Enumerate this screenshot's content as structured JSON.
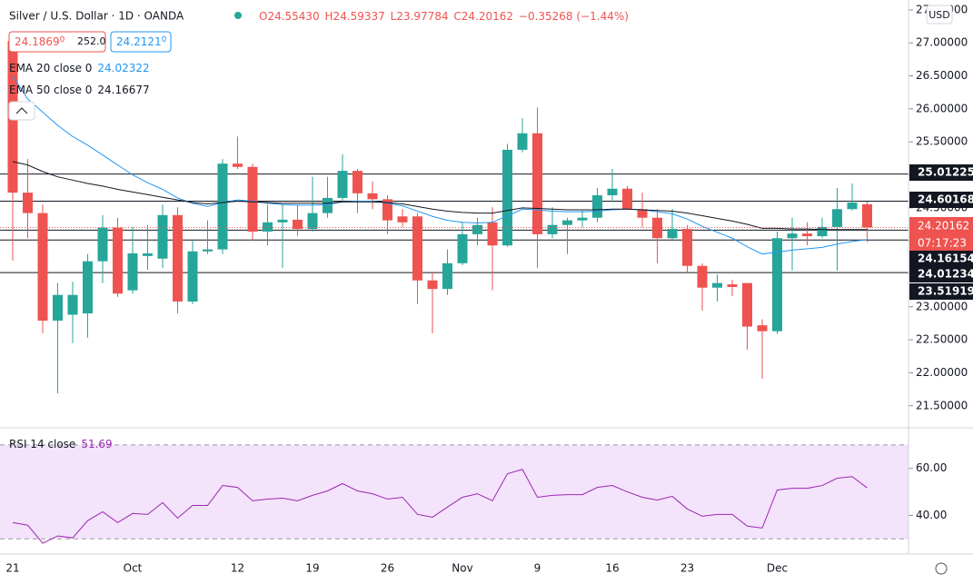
{
  "header": {
    "symbol": "Silver / U.S. Dollar · 1D · OANDA",
    "open": "O24.55430",
    "high": "H24.59337",
    "low": "L23.97784",
    "close": "C24.20162",
    "change": "−0.35268 (−1.44%)",
    "bid": "24.1869",
    "bid_sup": "0",
    "spread": "252.0",
    "ask": "24.2121",
    "ask_sup": "0",
    "currency": "USD"
  },
  "chart_data": [
    {
      "type": "candlestick",
      "title": "Silver / U.S. Dollar · 1D · OANDA",
      "categories": [
        "21",
        null,
        null,
        null,
        null,
        null,
        null,
        null,
        "Oct",
        null,
        null,
        null,
        null,
        null,
        null,
        "12",
        null,
        null,
        null,
        null,
        "19",
        null,
        null,
        null,
        null,
        "26",
        null,
        null,
        null,
        null,
        "Nov",
        null,
        null,
        null,
        null,
        "9",
        null,
        null,
        null,
        null,
        "16",
        null,
        null,
        null,
        null,
        "23",
        null,
        null,
        null,
        null,
        null,
        "Dec",
        null,
        null,
        null,
        null,
        null,
        null
      ],
      "open": [
        27.03,
        24.73,
        24.42,
        22.79,
        22.88,
        22.9,
        23.69,
        24.2,
        23.25,
        23.77,
        23.73,
        24.39,
        23.08,
        23.84,
        23.87,
        25.17,
        25.12,
        24.14,
        24.28,
        24.32,
        24.18,
        24.42,
        24.65,
        25.06,
        24.72,
        24.63,
        24.37,
        24.37,
        23.4,
        23.27,
        23.66,
        24.1,
        24.28,
        23.93,
        25.38,
        25.63,
        24.1,
        24.24,
        24.31,
        24.35,
        24.69,
        24.79,
        24.48,
        24.35,
        24.04,
        24.18,
        23.62,
        23.29,
        23.34,
        23.36,
        22.72,
        22.63,
        24.04,
        24.11,
        24.07,
        24.21,
        24.48,
        24.5543
      ],
      "high": [
        27.1,
        25.24,
        24.55,
        23.36,
        23.38,
        23.8,
        24.39,
        24.35,
        24.21,
        24.24,
        24.55,
        24.51,
        24.0,
        24.31,
        25.24,
        25.58,
        25.17,
        24.55,
        24.55,
        24.55,
        24.97,
        24.97,
        25.31,
        25.09,
        24.9,
        24.69,
        24.48,
        24.42,
        23.52,
        23.87,
        24.28,
        24.35,
        24.51,
        25.47,
        25.86,
        26.02,
        24.51,
        24.35,
        24.46,
        24.8,
        25.09,
        24.83,
        24.73,
        24.48,
        24.48,
        24.24,
        23.66,
        23.49,
        23.41,
        23.36,
        22.81,
        24.14,
        24.35,
        24.28,
        24.35,
        24.8,
        24.87,
        24.59337
      ],
      "low": [
        23.7,
        24.04,
        22.6,
        21.69,
        22.45,
        22.53,
        23.36,
        23.15,
        23.2,
        23.56,
        23.59,
        22.9,
        23.04,
        23.8,
        23.8,
        25.09,
        24.0,
        23.93,
        23.59,
        24.07,
        24.14,
        24.35,
        24.59,
        24.42,
        24.48,
        24.1,
        24.21,
        23.04,
        22.6,
        23.18,
        23.63,
        23.93,
        23.25,
        23.91,
        25.34,
        23.59,
        24.04,
        23.8,
        24.21,
        24.28,
        24.59,
        24.48,
        24.21,
        23.66,
        24.0,
        23.52,
        22.94,
        23.08,
        23.16,
        22.35,
        21.91,
        22.59,
        23.55,
        23.93,
        24.04,
        23.55,
        24.46,
        23.97784
      ],
      "close": [
        24.73,
        24.42,
        22.79,
        23.18,
        23.18,
        23.69,
        24.2,
        23.2,
        23.81,
        23.81,
        24.39,
        23.08,
        23.84,
        23.87,
        25.17,
        25.12,
        24.14,
        24.28,
        24.32,
        24.18,
        24.42,
        24.65,
        25.06,
        24.72,
        24.63,
        24.31,
        24.28,
        23.4,
        23.27,
        23.66,
        24.1,
        24.24,
        23.93,
        25.38,
        25.63,
        24.1,
        24.24,
        24.31,
        24.35,
        24.69,
        24.79,
        24.48,
        24.35,
        24.04,
        24.18,
        23.62,
        23.29,
        23.36,
        23.3,
        22.7,
        22.63,
        24.04,
        24.11,
        24.07,
        24.21,
        24.48,
        24.58,
        24.20162
      ],
      "up_color": "#26a69a",
      "down_color": "#ef5350",
      "series": [
        {
          "name": "EMA 20 close 0",
          "last": 24.02322,
          "color": "#2196f3",
          "values": [
            26.5,
            26.15,
            25.95,
            25.75,
            25.58,
            25.45,
            25.3,
            25.15,
            25.0,
            24.88,
            24.78,
            24.65,
            24.57,
            24.52,
            24.58,
            24.62,
            24.6,
            24.57,
            24.55,
            24.54,
            24.54,
            24.55,
            24.59,
            24.6,
            24.6,
            24.57,
            24.53,
            24.45,
            24.37,
            24.31,
            24.28,
            24.27,
            24.28,
            24.38,
            24.48,
            24.47,
            24.45,
            24.44,
            24.44,
            24.45,
            24.47,
            24.48,
            24.47,
            24.44,
            24.41,
            24.33,
            24.22,
            24.13,
            24.04,
            23.91,
            23.8,
            23.83,
            23.86,
            23.88,
            23.9,
            23.95,
            23.99,
            24.02
          ]
        },
        {
          "name": "EMA 50 close 0",
          "last": 24.16677,
          "color": "#131722",
          "values": [
            25.2,
            25.15,
            25.05,
            24.97,
            24.92,
            24.87,
            24.83,
            24.78,
            24.74,
            24.7,
            24.66,
            24.62,
            24.58,
            24.56,
            24.58,
            24.6,
            24.59,
            24.58,
            24.57,
            24.57,
            24.57,
            24.57,
            24.59,
            24.59,
            24.59,
            24.58,
            24.56,
            24.52,
            24.48,
            24.45,
            24.43,
            24.42,
            24.42,
            24.46,
            24.5,
            24.49,
            24.48,
            24.47,
            24.47,
            24.47,
            24.48,
            24.48,
            24.47,
            24.46,
            24.45,
            24.42,
            24.38,
            24.34,
            24.3,
            24.25,
            24.19,
            24.19,
            24.18,
            24.18,
            24.17,
            24.17,
            24.17,
            24.17
          ]
        }
      ],
      "levels": [
        25.01225,
        24.60168,
        24.16154,
        24.01234,
        23.51919
      ],
      "last_price": 24.20162,
      "countdown": "07:17:23",
      "ylim": [
        21.18,
        27.65
      ],
      "yticks": [
        {
          "value": 27.5,
          "label": "27.50000"
        },
        {
          "value": 27,
          "label": "27.00000"
        },
        {
          "value": 26.5,
          "label": "26.50000"
        },
        {
          "value": 26,
          "label": "26.00000"
        },
        {
          "value": 25.5,
          "label": "25.50000"
        },
        {
          "value": 25,
          "label": "25.00000"
        },
        {
          "value": 24.5,
          "label": "24.50000"
        },
        {
          "value": 24,
          "label": "24.00000"
        },
        {
          "value": 23.5,
          "label": "23.50000"
        },
        {
          "value": 23,
          "label": "23.00000"
        },
        {
          "value": 22.5,
          "label": "22.50000"
        },
        {
          "value": 22,
          "label": "22.00000"
        },
        {
          "value": 21.5,
          "label": "21.50000"
        }
      ]
    },
    {
      "type": "line",
      "series": [
        {
          "name": "RSI 14 close",
          "last": 51.69,
          "color": "#9c27b0",
          "values": [
            36.9,
            35.8,
            28.1,
            31.2,
            30.4,
            37.7,
            41.5,
            36.9,
            40.8,
            40.4,
            45.4,
            38.8,
            44.2,
            44.2,
            52.7,
            51.9,
            46.2,
            46.9,
            47.3,
            46.2,
            48.5,
            50.4,
            53.5,
            50.4,
            49.2,
            46.9,
            47.7,
            40.4,
            39.2,
            43.5,
            47.7,
            49.2,
            46.2,
            57.7,
            59.6,
            47.7,
            48.5,
            48.8,
            48.8,
            51.9,
            52.7,
            50.0,
            47.7,
            46.5,
            48.1,
            42.7,
            39.6,
            40.4,
            40.4,
            35.4,
            34.6,
            50.8,
            51.5,
            51.5,
            52.7,
            55.8,
            56.5,
            51.69
          ]
        }
      ],
      "band": [
        30,
        70
      ],
      "band_color": "#f3e3fb",
      "ylim": [
        23.5,
        77.3
      ],
      "yticks": [
        {
          "value": 60,
          "label": "60.00"
        },
        {
          "value": 40,
          "label": "40.00"
        }
      ]
    }
  ]
}
